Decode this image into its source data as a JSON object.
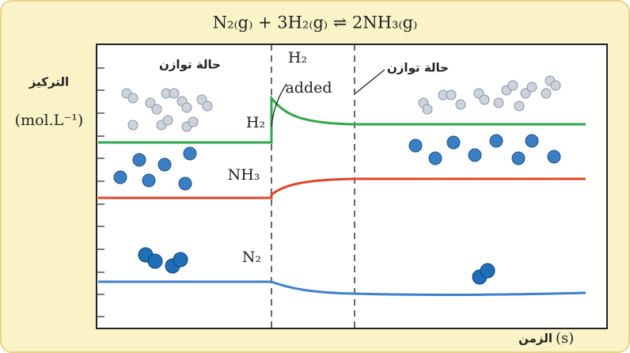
{
  "title": "N₂₍g₎ + 3H₂₍g₎ ⇌ 2NH₃₍g₎",
  "y_axis": {
    "label": "التركيز",
    "unit": "(mol.L⁻¹)"
  },
  "x_axis": {
    "label": "الزمن",
    "unit": "(s)"
  },
  "annotations": {
    "equilibrium_left": "حالة توازن",
    "equilibrium_right": "حالة توازن",
    "h2": "H₂",
    "added": "added"
  },
  "curves": {
    "h2": "H₂",
    "nh3": "NH₃",
    "n2": "N₂"
  }
}
